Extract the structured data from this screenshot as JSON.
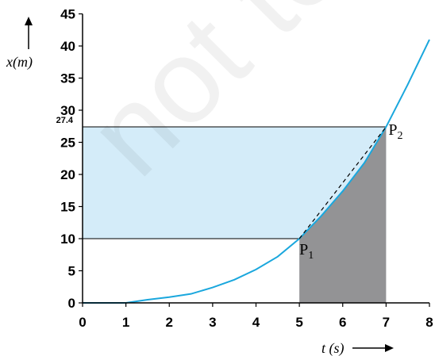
{
  "chart_data": {
    "type": "line",
    "xlabel": "t (s)",
    "ylabel": "x(m)",
    "xlim": [
      0,
      8
    ],
    "ylim": [
      0,
      45
    ],
    "x_ticks": [
      "0",
      "1",
      "2",
      "3",
      "4",
      "5",
      "6",
      "7",
      "8"
    ],
    "y_ticks": [
      "0",
      "5",
      "10",
      "15",
      "20",
      "25",
      "30",
      "35",
      "40",
      "45"
    ],
    "marked_y_label": "27.4",
    "marked_y_value": 27.4,
    "series": [
      {
        "x": [
          0,
          1,
          1.5,
          2,
          2.5,
          3,
          3.5,
          4,
          4.5,
          5,
          5.5,
          6,
          6.5,
          7,
          7.5,
          8
        ],
        "y": [
          0,
          0,
          0.5,
          0.9,
          1.4,
          2.4,
          3.6,
          5.2,
          7.2,
          10,
          13.5,
          17.4,
          21.8,
          27.4,
          34,
          41
        ],
        "color": "#1aa7dd"
      }
    ],
    "chord": {
      "from": [
        5,
        10
      ],
      "to": [
        7,
        27.4
      ]
    },
    "points": [
      {
        "label": "P1",
        "main": "P",
        "sub": "1",
        "x": 5,
        "y": 10
      },
      {
        "label": "P2",
        "main": "P",
        "sub": "2",
        "x": 7,
        "y": 27.4
      }
    ],
    "x_interval_shaded": [
      5,
      7
    ],
    "y_interval_shaded": [
      10,
      27.4
    ],
    "colors": {
      "curve": "#1aa7dd",
      "y_band": "#d4ecf9",
      "area_under": "#939395",
      "axis": "#000000"
    },
    "grid": false
  },
  "watermark": "not to"
}
